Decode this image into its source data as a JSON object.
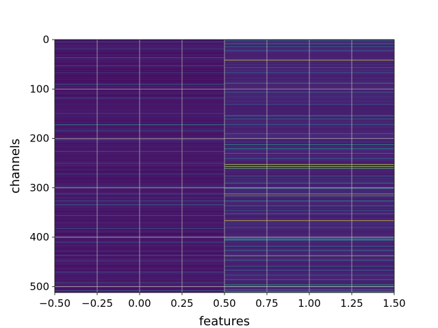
{
  "chart_data": {
    "type": "heatmap",
    "title": "",
    "xlabel": "features",
    "ylabel": "channels",
    "xlim": [
      -0.5,
      1.5
    ],
    "ylim": [
      512,
      0
    ],
    "grid": true,
    "colormap": "viridis",
    "value_range": [
      0,
      1
    ],
    "n_channels": 512,
    "features": [
      0,
      1
    ],
    "x_ticks": [
      {
        "value": -0.5,
        "label": "−0.50"
      },
      {
        "value": -0.25,
        "label": "−0.25"
      },
      {
        "value": 0.0,
        "label": "0.00"
      },
      {
        "value": 0.25,
        "label": "0.25"
      },
      {
        "value": 0.5,
        "label": "0.50"
      },
      {
        "value": 0.75,
        "label": "0.75"
      },
      {
        "value": 1.0,
        "label": "1.00"
      },
      {
        "value": 1.25,
        "label": "1.25"
      },
      {
        "value": 1.5,
        "label": "1.50"
      }
    ],
    "y_ticks": [
      {
        "value": 0,
        "label": "0"
      },
      {
        "value": 100,
        "label": "100"
      },
      {
        "value": 200,
        "label": "200"
      },
      {
        "value": 300,
        "label": "300"
      },
      {
        "value": 400,
        "label": "400"
      },
      {
        "value": 500,
        "label": "500"
      }
    ],
    "series": [
      {
        "feature": 0,
        "baseline": 0.08,
        "highlights": [
          {
            "channel": 4,
            "value": 0.25
          },
          {
            "channel": 18,
            "value": 0.22
          },
          {
            "channel": 36,
            "value": 0.3
          },
          {
            "channel": 52,
            "value": 0.28
          },
          {
            "channel": 66,
            "value": 0.24
          },
          {
            "channel": 90,
            "value": 0.3
          },
          {
            "channel": 118,
            "value": 0.22
          },
          {
            "channel": 150,
            "value": 0.25
          },
          {
            "channel": 172,
            "value": 0.5
          },
          {
            "channel": 184,
            "value": 0.3
          },
          {
            "channel": 202,
            "value": 0.55
          },
          {
            "channel": 226,
            "value": 0.28
          },
          {
            "channel": 250,
            "value": 0.3
          },
          {
            "channel": 272,
            "value": 0.25
          },
          {
            "channel": 296,
            "value": 0.3
          },
          {
            "channel": 312,
            "value": 0.35
          },
          {
            "channel": 326,
            "value": 0.32
          },
          {
            "channel": 334,
            "value": 0.35
          },
          {
            "channel": 356,
            "value": 0.28
          },
          {
            "channel": 382,
            "value": 0.3
          },
          {
            "channel": 410,
            "value": 0.28
          },
          {
            "channel": 436,
            "value": 0.3
          },
          {
            "channel": 448,
            "value": 0.25
          },
          {
            "channel": 470,
            "value": 0.28
          },
          {
            "channel": 492,
            "value": 0.3
          },
          {
            "channel": 508,
            "value": 0.32
          }
        ]
      },
      {
        "feature": 1,
        "baseline": 0.12,
        "highlights": [
          {
            "channel": 2,
            "value": 0.45
          },
          {
            "channel": 8,
            "value": 0.5
          },
          {
            "channel": 14,
            "value": 0.4
          },
          {
            "channel": 22,
            "value": 0.35
          },
          {
            "channel": 41,
            "value": 0.95
          },
          {
            "channel": 56,
            "value": 0.35
          },
          {
            "channel": 66,
            "value": 0.3
          },
          {
            "channel": 88,
            "value": 0.6
          },
          {
            "channel": 106,
            "value": 0.35
          },
          {
            "channel": 130,
            "value": 0.3
          },
          {
            "channel": 154,
            "value": 0.5
          },
          {
            "channel": 160,
            "value": 0.45
          },
          {
            "channel": 172,
            "value": 0.4
          },
          {
            "channel": 190,
            "value": 0.35
          },
          {
            "channel": 212,
            "value": 0.55
          },
          {
            "channel": 220,
            "value": 0.5
          },
          {
            "channel": 230,
            "value": 0.45
          },
          {
            "channel": 240,
            "value": 0.35
          },
          {
            "channel": 252,
            "value": 0.9
          },
          {
            "channel": 256,
            "value": 0.85
          },
          {
            "channel": 260,
            "value": 0.75
          },
          {
            "channel": 276,
            "value": 0.4
          },
          {
            "channel": 290,
            "value": 0.5
          },
          {
            "channel": 301,
            "value": 0.45
          },
          {
            "channel": 312,
            "value": 0.85
          },
          {
            "channel": 316,
            "value": 0.6
          },
          {
            "channel": 326,
            "value": 0.5
          },
          {
            "channel": 336,
            "value": 0.45
          },
          {
            "channel": 346,
            "value": 0.4
          },
          {
            "channel": 352,
            "value": 0.35
          },
          {
            "channel": 366,
            "value": 0.95
          },
          {
            "channel": 380,
            "value": 0.4
          },
          {
            "channel": 402,
            "value": 0.55
          },
          {
            "channel": 404,
            "value": 0.6
          },
          {
            "channel": 406,
            "value": 0.5
          },
          {
            "channel": 418,
            "value": 0.35
          },
          {
            "channel": 426,
            "value": 0.45
          },
          {
            "channel": 437,
            "value": 0.8
          },
          {
            "channel": 446,
            "value": 0.5
          },
          {
            "channel": 458,
            "value": 0.4
          },
          {
            "channel": 466,
            "value": 0.35
          },
          {
            "channel": 476,
            "value": 0.4
          },
          {
            "channel": 486,
            "value": 0.45
          },
          {
            "channel": 496,
            "value": 0.6
          },
          {
            "channel": 500,
            "value": 0.5
          },
          {
            "channel": 506,
            "value": 0.55
          },
          {
            "channel": 510,
            "value": 0.7
          }
        ]
      }
    ]
  }
}
